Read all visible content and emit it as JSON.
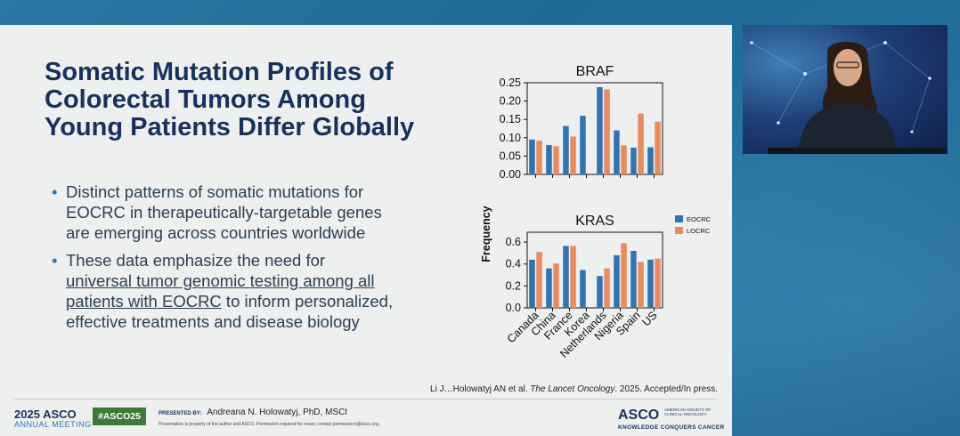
{
  "slide": {
    "title": "Somatic Mutation Profiles of Colorectal Tumors Among Young Patients Differ Globally",
    "title_lines": [
      "Somatic Mutation Profiles of",
      "Colorectal Tumors Among",
      "Young Patients Differ Globally"
    ],
    "bullet_glyph": "•",
    "bullets": [
      {
        "lines": [
          "Distinct patterns of somatic mutations for",
          "EOCRC in therapeutically-targetable genes",
          "are emerging across countries worldwide"
        ]
      },
      {
        "lines": [
          "These data emphasize the need for",
          "universal tumor genomic testing among all",
          "patients with EOCRC",
          " to inform personalized,",
          "effective treatments and disease biology"
        ]
      }
    ],
    "citation_pre": "Li J…Holowatyj AN et al. ",
    "citation_journal": "The Lancet Oncology",
    "citation_post": ". 2025. Accepted/In press."
  },
  "footer": {
    "year": "2025",
    "asco": "ASCO",
    "meeting": "ANNUAL MEETING",
    "hashtag": "#ASCO25",
    "presented_label": "PRESENTED BY:",
    "presenter": "Andreana N. Holowatyj, PhD, MSCI",
    "disclaimer": "Presentation is property of the author and ASCO. Permission required for reuse; contact permissions@asco.org.",
    "logo": "ASCO",
    "logo_sub": "AMERICAN SOCIETY OF CLINICAL ONCOLOGY",
    "tagline": "KNOWLEDGE CONQUERS CANCER"
  },
  "colors": {
    "eocrc": "#2f74b3",
    "locrc": "#e98b5c",
    "title": "#16325c"
  },
  "chart_data": [
    {
      "type": "bar",
      "title": "BRAF",
      "ylabel": "Frequency",
      "categories": [
        "Canada",
        "China",
        "France",
        "Korea",
        "Netherlands",
        "Nigeria",
        "Spain",
        "US"
      ],
      "ylim": [
        0,
        0.25
      ],
      "yticks": [
        "0.00",
        "0.05",
        "0.10",
        "0.15",
        "0.20",
        "0.25"
      ],
      "ytick_values": [
        0,
        0.05,
        0.1,
        0.15,
        0.2,
        0.25
      ],
      "series": [
        {
          "name": "EOCRC",
          "values": [
            0.095,
            0.08,
            0.132,
            0.16,
            0.238,
            0.12,
            0.073,
            0.074
          ]
        },
        {
          "name": "LOCRC",
          "values": [
            0.092,
            0.077,
            0.103,
            null,
            0.232,
            0.079,
            0.166,
            0.144
          ]
        }
      ]
    },
    {
      "type": "bar",
      "title": "KRAS",
      "ylabel": "Frequency",
      "categories": [
        "Canada",
        "China",
        "France",
        "Korea",
        "Netherlands",
        "Nigeria",
        "Spain",
        "US"
      ],
      "ylim": [
        0,
        0.69
      ],
      "yticks": [
        "0.0",
        "0.2",
        "0.4",
        "0.6"
      ],
      "ytick_values": [
        0,
        0.2,
        0.4,
        0.6
      ],
      "legend": "right",
      "series": [
        {
          "name": "EOCRC",
          "values": [
            0.44,
            0.36,
            0.565,
            0.345,
            0.29,
            0.48,
            0.52,
            0.44
          ]
        },
        {
          "name": "LOCRC",
          "values": [
            0.51,
            0.405,
            0.565,
            null,
            0.36,
            0.59,
            0.42,
            0.45
          ]
        }
      ]
    }
  ]
}
